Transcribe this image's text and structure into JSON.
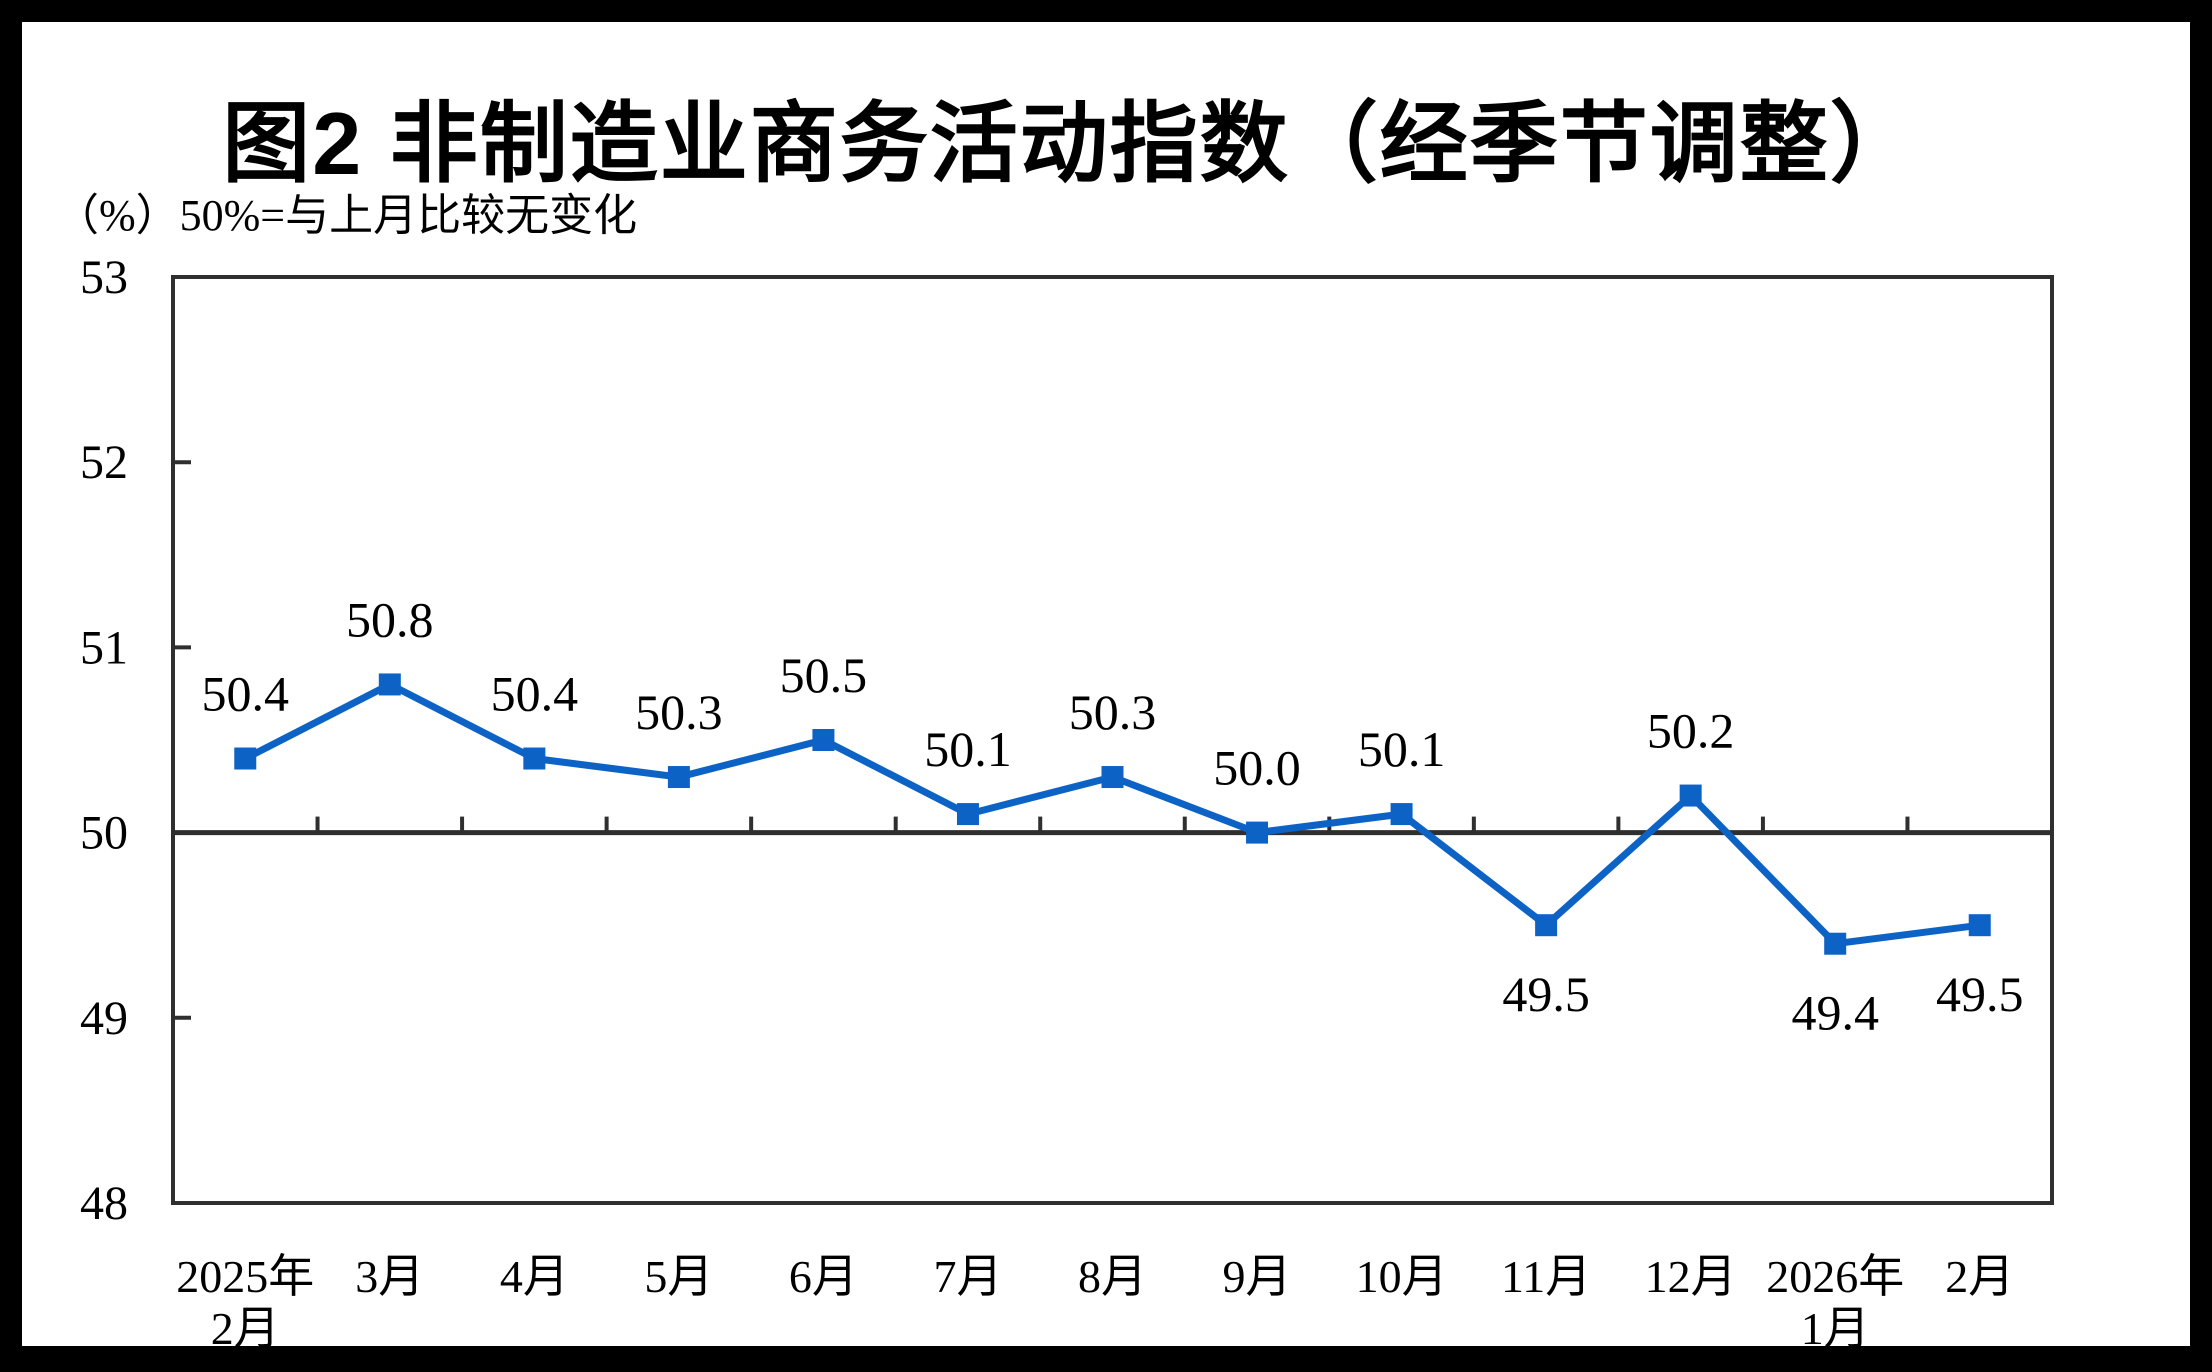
{
  "title": "图2 非制造业商务活动指数（经季节调整）",
  "unit_note": "（%）50%=与上月比较无变化",
  "chart_data": {
    "type": "line",
    "title": "图2 非制造业商务活动指数（经季节调整）",
    "unit_label": "（%）",
    "note": "50%=与上月比较无变化",
    "series_name": "非制造业商务活动指数（经季节调整）",
    "categories": [
      [
        "2025年",
        "2月"
      ],
      [
        "3月"
      ],
      [
        "4月"
      ],
      [
        "5月"
      ],
      [
        "6月"
      ],
      [
        "7月"
      ],
      [
        "8月"
      ],
      [
        "9月"
      ],
      [
        "10月"
      ],
      [
        "11月"
      ],
      [
        "12月"
      ],
      [
        "2026年",
        "1月"
      ],
      [
        "2月"
      ]
    ],
    "values": [
      50.4,
      50.8,
      50.4,
      50.3,
      50.5,
      50.1,
      50.3,
      50.0,
      50.1,
      49.5,
      50.2,
      49.4,
      49.5
    ],
    "label_positions": [
      "above",
      "above",
      "above",
      "above",
      "above",
      "above",
      "above",
      "above",
      "above",
      "below",
      "above",
      "below",
      "below"
    ],
    "ylim": [
      48,
      53
    ],
    "ytick_step": 1,
    "yticks": [
      48,
      49,
      50,
      51,
      52,
      53
    ],
    "baseline_value": 50,
    "grid": "off",
    "legend_position": "none",
    "marker": "square",
    "line_color": "#0D63C5",
    "axis_color": "#2F2F2F",
    "text_color": "#000000",
    "background_color": "#FFFFFF"
  }
}
